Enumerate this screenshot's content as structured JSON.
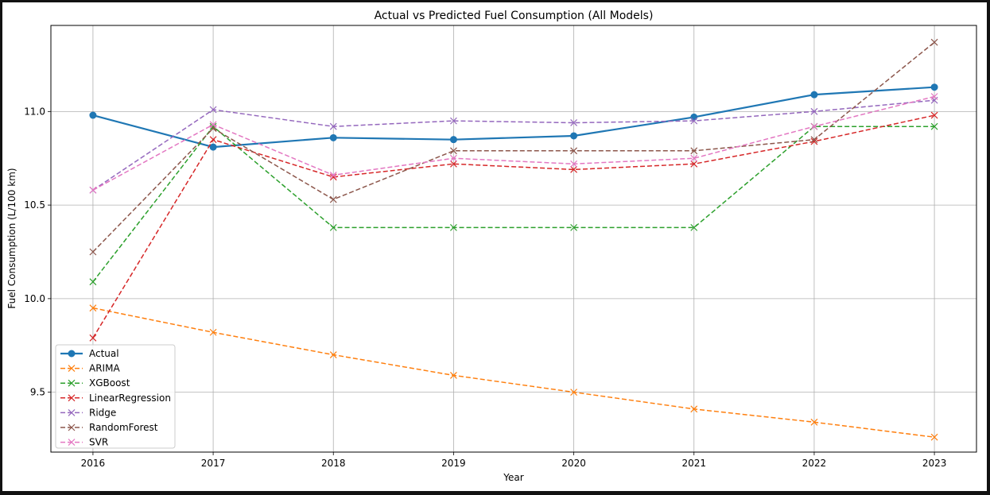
{
  "chart_data": {
    "type": "line",
    "title": "Actual vs Predicted Fuel Consumption (All Models)",
    "xlabel": "Year",
    "ylabel": "Fuel Consumption (L/100 km)",
    "x": [
      2016,
      2017,
      2018,
      2019,
      2020,
      2021,
      2022,
      2023
    ],
    "x_ticks": [
      "2016",
      "2017",
      "2018",
      "2019",
      "2020",
      "2021",
      "2022",
      "2023"
    ],
    "y_ticks": [
      9.5,
      10.0,
      10.5,
      11.0
    ],
    "y_tick_labels": [
      "9.5",
      "10.0",
      "10.5",
      "11.0"
    ],
    "xlim": [
      2015.65,
      2023.35
    ],
    "ylim": [
      9.18,
      11.46
    ],
    "grid": true,
    "legend_position": "lower-left",
    "series": [
      {
        "name": "Actual",
        "color": "#1f77b4",
        "style": "solid",
        "marker": "circle",
        "values": [
          10.98,
          10.81,
          10.86,
          10.85,
          10.87,
          10.97,
          11.09,
          11.13
        ]
      },
      {
        "name": "ARIMA",
        "color": "#ff7f0e",
        "style": "dashed",
        "marker": "x",
        "values": [
          9.95,
          9.82,
          9.7,
          9.59,
          9.5,
          9.41,
          9.34,
          9.26
        ]
      },
      {
        "name": "XGBoost",
        "color": "#2ca02c",
        "style": "dashed",
        "marker": "x",
        "values": [
          10.09,
          10.92,
          10.38,
          10.38,
          10.38,
          10.38,
          10.92,
          10.92
        ]
      },
      {
        "name": "LinearRegression",
        "color": "#d62728",
        "style": "dashed",
        "marker": "x",
        "values": [
          9.79,
          10.85,
          10.65,
          10.72,
          10.69,
          10.72,
          10.84,
          10.98
        ]
      },
      {
        "name": "Ridge",
        "color": "#9467bd",
        "style": "dashed",
        "marker": "x",
        "values": [
          10.58,
          11.01,
          10.92,
          10.95,
          10.94,
          10.95,
          11.0,
          11.06
        ]
      },
      {
        "name": "RandomForest",
        "color": "#8c564b",
        "style": "dashed",
        "marker": "x",
        "values": [
          10.25,
          10.91,
          10.53,
          10.79,
          10.79,
          10.79,
          10.85,
          11.37
        ]
      },
      {
        "name": "SVR",
        "color": "#e377c2",
        "style": "dashed",
        "marker": "x",
        "values": [
          10.58,
          10.93,
          10.66,
          10.75,
          10.72,
          10.75,
          10.92,
          11.08
        ]
      }
    ]
  }
}
